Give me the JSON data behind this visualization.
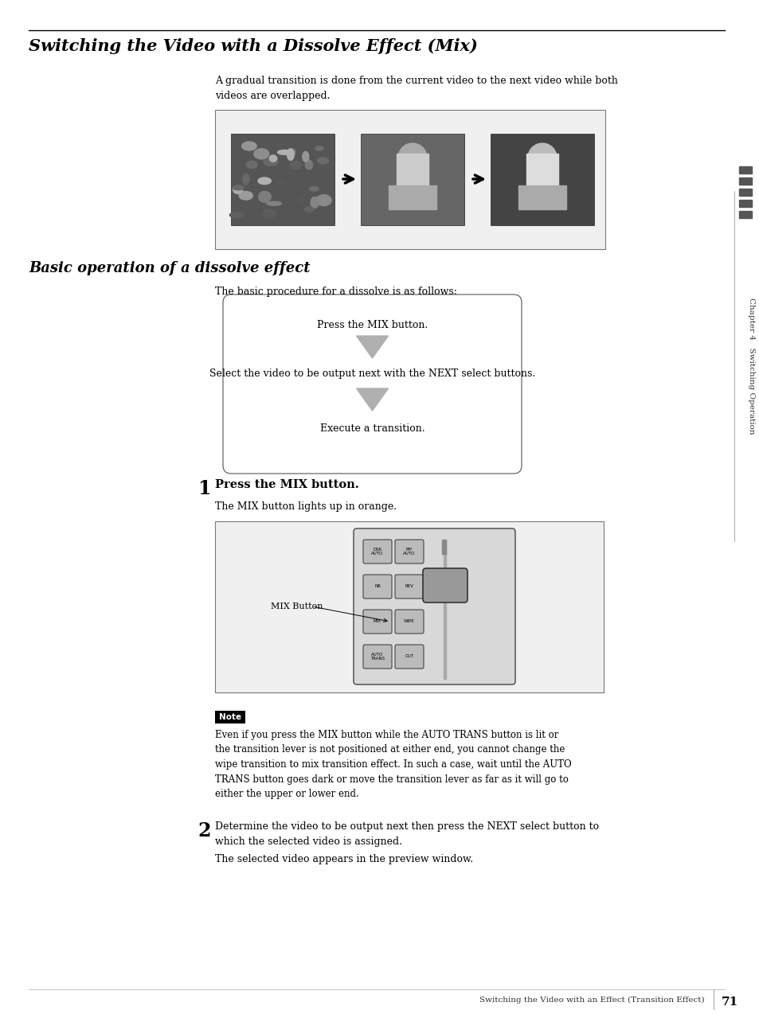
{
  "title": "Switching the Video with a Dissolve Effect (Mix)",
  "subtitle": "A gradual transition is done from the current video to the next video while both\nvideos are overlapped.",
  "section2_title": "Basic operation of a dissolve effect",
  "section2_subtitle": "The basic procedure for a dissolve is as follows:",
  "flow_steps": [
    "Press the MIX button.",
    "Select the video to be output next with the NEXT select buttons.",
    "Execute a transition."
  ],
  "step1_num": "1",
  "step1_text": "Press the MIX button.",
  "step1_detail": "The MIX button lights up in orange.",
  "mix_button_label": "MIX Button",
  "note_label": "Note",
  "note_text": "Even if you press the MIX button while the AUTO TRANS button is lit or\nthe transition lever is not positioned at either end, you cannot change the\nwipe transition to mix transition effect. In such a case, wait until the AUTO\nTRANS button goes dark or move the transition lever as far as it will go to\neither the upper or lower end.",
  "step2_num": "2",
  "step2_text": "Determine the video to be output next then press the NEXT select button to\nwhich the selected video is assigned.",
  "step2_detail": "The selected video appears in the preview window.",
  "footer_text": "Switching the Video with an Effect (Transition Effect)",
  "footer_page": "71",
  "bg_color": "#ffffff",
  "text_color": "#000000",
  "arrow_color": "#aaaaaa",
  "note_bg": "#000000",
  "note_text_color": "#ffffff"
}
